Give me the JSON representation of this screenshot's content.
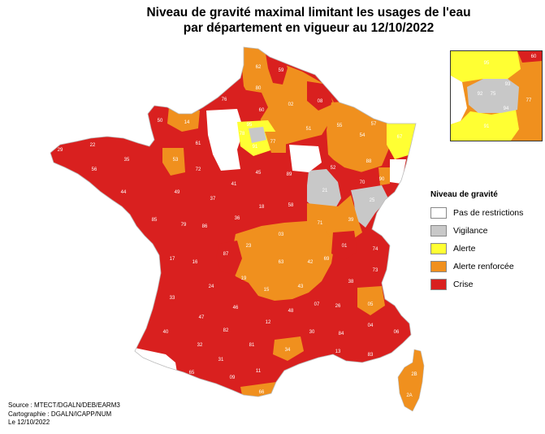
{
  "title": {
    "line1": "Niveau de gravité maximal limitant les usages de l'eau",
    "line2": "par département en vigueur au 12/10/2022"
  },
  "legend": {
    "title": "Niveau de gravité",
    "items": [
      {
        "label": "Pas de restrictions",
        "color": "#ffffff"
      },
      {
        "label": "Vigilance",
        "color": "#c8c8c8"
      },
      {
        "label": "Alerte",
        "color": "#ffff33"
      },
      {
        "label": "Alerte renforcée",
        "color": "#f0901e"
      },
      {
        "label": "Crise",
        "color": "#d9201f"
      }
    ]
  },
  "source": {
    "line1": "Source : MTECT/DGALN/DEB/EARM3",
    "line2": "Cartographie : DGALN/ICAPP/NUM",
    "line3": "Le 12/10/2022"
  },
  "departments": [
    {
      "code": "62",
      "level": "Alerte renforcée"
    },
    {
      "code": "59",
      "level": "Crise"
    },
    {
      "code": "80",
      "level": "Alerte renforcée"
    },
    {
      "code": "02",
      "level": "Alerte renforcée"
    },
    {
      "code": "08",
      "level": "Crise"
    },
    {
      "code": "76",
      "level": "Crise"
    },
    {
      "code": "60",
      "level": "Crise"
    },
    {
      "code": "27",
      "level": "Pas de restrictions"
    },
    {
      "code": "14",
      "level": "Alerte renforcée"
    },
    {
      "code": "50",
      "level": "Crise"
    },
    {
      "code": "61",
      "level": "Crise"
    },
    {
      "code": "28",
      "level": "Pas de restrictions"
    },
    {
      "code": "78",
      "level": "Pas de restrictions"
    },
    {
      "code": "95",
      "level": "Alerte"
    },
    {
      "code": "91",
      "level": "Alerte"
    },
    {
      "code": "77",
      "level": "Alerte renforcée"
    },
    {
      "code": "51",
      "level": "Alerte renforcée"
    },
    {
      "code": "55",
      "level": "Alerte renforcée"
    },
    {
      "code": "57",
      "level": "Alerte renforcée"
    },
    {
      "code": "54",
      "level": "Alerte renforcée"
    },
    {
      "code": "67",
      "level": "Alerte"
    },
    {
      "code": "68",
      "level": "Pas de restrictions"
    },
    {
      "code": "88",
      "level": "Alerte renforcée"
    },
    {
      "code": "52",
      "level": "Crise"
    },
    {
      "code": "10",
      "level": "Pas de restrictions"
    },
    {
      "code": "89",
      "level": "Crise"
    },
    {
      "code": "45",
      "level": "Crise"
    },
    {
      "code": "29",
      "level": "Crise"
    },
    {
      "code": "22",
      "level": "Crise"
    },
    {
      "code": "56",
      "level": "Crise"
    },
    {
      "code": "35",
      "level": "Crise"
    },
    {
      "code": "53",
      "level": "Alerte renforcée"
    },
    {
      "code": "72",
      "level": "Crise"
    },
    {
      "code": "44",
      "level": "Crise"
    },
    {
      "code": "49",
      "level": "Crise"
    },
    {
      "code": "37",
      "level": "Crise"
    },
    {
      "code": "41",
      "level": "Crise"
    },
    {
      "code": "18",
      "level": "Crise"
    },
    {
      "code": "58",
      "level": "Crise"
    },
    {
      "code": "21",
      "level": "Vigilance"
    },
    {
      "code": "70",
      "level": "Crise"
    },
    {
      "code": "90",
      "level": "Alerte renforcée"
    },
    {
      "code": "25",
      "level": "Vigilance"
    },
    {
      "code": "39",
      "level": "Alerte renforcée"
    },
    {
      "code": "71",
      "level": "Alerte renforcée"
    },
    {
      "code": "85",
      "level": "Crise"
    },
    {
      "code": "79",
      "level": "Crise"
    },
    {
      "code": "86",
      "level": "Crise"
    },
    {
      "code": "36",
      "level": "Crise"
    },
    {
      "code": "03",
      "level": "Alerte renforcée"
    },
    {
      "code": "23",
      "level": "Alerte renforcée"
    },
    {
      "code": "87",
      "level": "Crise"
    },
    {
      "code": "63",
      "level": "Alerte renforcée"
    },
    {
      "code": "42",
      "level": "Alerte renforcée"
    },
    {
      "code": "69",
      "level": "Alerte renforcée"
    },
    {
      "code": "01",
      "level": "Crise"
    },
    {
      "code": "74",
      "level": "Crise"
    },
    {
      "code": "73",
      "level": "Crise"
    },
    {
      "code": "38",
      "level": "Crise"
    },
    {
      "code": "17",
      "level": "Crise"
    },
    {
      "code": "16",
      "level": "Crise"
    },
    {
      "code": "19",
      "level": "Alerte renforcée"
    },
    {
      "code": "15",
      "level": "Alerte renforcée"
    },
    {
      "code": "43",
      "level": "Alerte renforcée"
    },
    {
      "code": "07",
      "level": "Crise"
    },
    {
      "code": "26",
      "level": "Crise"
    },
    {
      "code": "05",
      "level": "Alerte renforcée"
    },
    {
      "code": "33",
      "level": "Crise"
    },
    {
      "code": "24",
      "level": "Crise"
    },
    {
      "code": "46",
      "level": "Crise"
    },
    {
      "code": "12",
      "level": "Crise"
    },
    {
      "code": "48",
      "level": "Crise"
    },
    {
      "code": "47",
      "level": "Crise"
    },
    {
      "code": "40",
      "level": "Crise"
    },
    {
      "code": "82",
      "level": "Crise"
    },
    {
      "code": "81",
      "level": "Crise"
    },
    {
      "code": "30",
      "level": "Crise"
    },
    {
      "code": "84",
      "level": "Crise"
    },
    {
      "code": "04",
      "level": "Crise"
    },
    {
      "code": "06",
      "level": "Crise"
    },
    {
      "code": "64",
      "level": "Pas de restrictions"
    },
    {
      "code": "32",
      "level": "Crise"
    },
    {
      "code": "31",
      "level": "Crise"
    },
    {
      "code": "34",
      "level": "Alerte renforcée"
    },
    {
      "code": "13",
      "level": "Crise"
    },
    {
      "code": "83",
      "level": "Crise"
    },
    {
      "code": "65",
      "level": "Crise"
    },
    {
      "code": "09",
      "level": "Crise"
    },
    {
      "code": "11",
      "level": "Crise"
    },
    {
      "code": "66",
      "level": "Alerte renforcée"
    },
    {
      "code": "2B",
      "level": "Alerte renforcée"
    },
    {
      "code": "2A",
      "level": "Alerte renforcée"
    },
    {
      "code": "92",
      "level": "Vigilance"
    },
    {
      "code": "93",
      "level": "Vigilance"
    },
    {
      "code": "75",
      "level": "Vigilance"
    },
    {
      "code": "94",
      "level": "Vigilance"
    }
  ]
}
